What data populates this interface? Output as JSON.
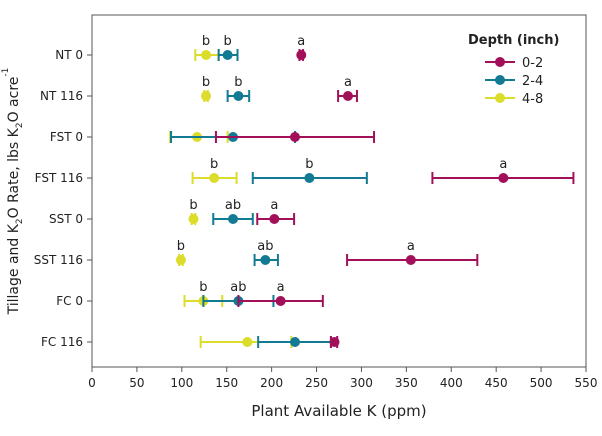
{
  "chart_data": {
    "type": "scatter",
    "subtype": "dot-with-error-bars",
    "xlabel": "Plant Available K (ppm)",
    "ylabel_parts": [
      "Tillage and K",
      "2",
      "O Rate, lbs K",
      "2",
      "O acre",
      "-1"
    ],
    "xlim": [
      0,
      550
    ],
    "xticks": [
      0,
      50,
      100,
      150,
      200,
      250,
      300,
      350,
      400,
      450,
      500,
      550
    ],
    "categories": [
      "NT 0",
      "NT 116",
      "FST 0",
      "FST 116",
      "SST 0",
      "SST 116",
      "FC 0",
      "FC 116"
    ],
    "grid": false,
    "legend": {
      "title": "Depth (inch)",
      "placement": "top-right"
    },
    "series": [
      {
        "name": "0-2",
        "color": "#a3105a",
        "values": [
          233,
          285,
          226,
          458,
          203,
          355,
          210,
          270
        ],
        "low": [
          231,
          274,
          138,
          379,
          184,
          284,
          163,
          266
        ],
        "high": [
          235,
          295,
          314,
          536,
          225,
          429,
          257,
          273
        ],
        "letters": [
          "a",
          "a",
          "",
          "a",
          "a",
          "a",
          "a",
          ""
        ]
      },
      {
        "name": "2-4",
        "color": "#137a93",
        "values": [
          151,
          163,
          157,
          242,
          157,
          193,
          163,
          226
        ],
        "low": [
          141,
          151,
          88,
          179,
          135,
          181,
          124,
          185
        ],
        "high": [
          162,
          175,
          226,
          306,
          179,
          207,
          202,
          266
        ],
        "letters": [
          "b",
          "b",
          "",
          "b",
          "ab",
          "ab",
          "ab",
          ""
        ]
      },
      {
        "name": "4-8",
        "color": "#dcdc2a",
        "values": [
          127,
          127,
          117,
          136,
          113,
          99,
          124,
          173
        ],
        "low": [
          115,
          125,
          87,
          112,
          111,
          97,
          103,
          121
        ],
        "high": [
          141,
          129,
          151,
          161,
          115,
          101,
          145,
          222
        ],
        "letters": [
          "b",
          "b",
          "",
          "b",
          "b",
          "b",
          "b",
          ""
        ]
      }
    ]
  }
}
